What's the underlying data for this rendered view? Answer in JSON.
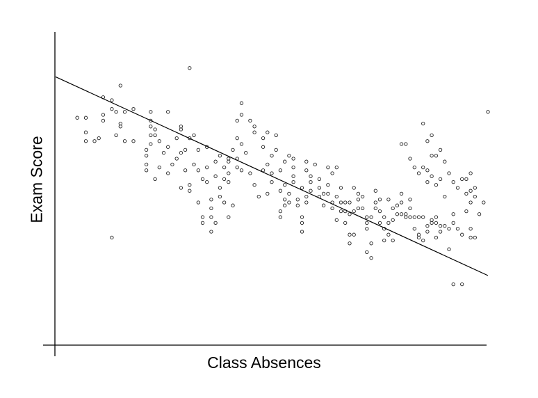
{
  "chart_data": {
    "type": "scatter",
    "title": "",
    "xlabel": "Class Absences",
    "ylabel": "Exam Score",
    "xlim": [
      0,
      100
    ],
    "ylim": [
      0,
      100
    ],
    "grid": false,
    "ticks": false,
    "trendline": {
      "x": [
        0,
        100
      ],
      "y": [
        88,
        20
      ]
    },
    "points": [
      [
        5,
        74
      ],
      [
        7,
        74
      ],
      [
        7,
        69
      ],
      [
        7,
        66
      ],
      [
        9,
        66
      ],
      [
        10,
        67
      ],
      [
        11,
        81
      ],
      [
        11,
        73
      ],
      [
        11,
        75
      ],
      [
        13,
        80
      ],
      [
        13,
        77
      ],
      [
        14,
        76
      ],
      [
        14,
        68
      ],
      [
        15,
        72
      ],
      [
        15,
        71
      ],
      [
        15,
        85
      ],
      [
        16,
        76
      ],
      [
        16,
        66
      ],
      [
        18,
        77
      ],
      [
        18,
        66
      ],
      [
        13,
        33
      ],
      [
        31,
        91
      ],
      [
        21,
        56
      ],
      [
        21,
        63
      ],
      [
        21,
        58
      ],
      [
        21,
        61
      ],
      [
        22,
        65
      ],
      [
        22,
        68
      ],
      [
        22,
        71
      ],
      [
        22,
        73
      ],
      [
        22,
        76
      ],
      [
        23,
        70
      ],
      [
        23,
        68
      ],
      [
        23,
        53
      ],
      [
        24,
        57
      ],
      [
        24,
        66
      ],
      [
        25,
        62
      ],
      [
        26,
        64
      ],
      [
        26,
        55
      ],
      [
        26,
        76
      ],
      [
        27,
        58
      ],
      [
        28,
        60
      ],
      [
        28,
        67
      ],
      [
        29,
        62
      ],
      [
        29,
        50
      ],
      [
        29,
        70
      ],
      [
        29,
        71
      ],
      [
        30,
        63
      ],
      [
        30,
        56
      ],
      [
        31,
        49
      ],
      [
        31,
        51
      ],
      [
        31,
        67
      ],
      [
        32,
        58
      ],
      [
        32,
        68
      ],
      [
        33,
        45
      ],
      [
        33,
        63
      ],
      [
        33,
        56
      ],
      [
        34,
        53
      ],
      [
        34,
        40
      ],
      [
        34,
        38
      ],
      [
        35,
        57
      ],
      [
        35,
        64
      ],
      [
        35,
        52
      ],
      [
        36,
        46
      ],
      [
        36,
        43
      ],
      [
        36,
        40
      ],
      [
        36,
        35
      ],
      [
        37,
        38
      ],
      [
        37,
        59
      ],
      [
        37,
        54
      ],
      [
        38,
        61
      ],
      [
        38,
        50
      ],
      [
        38,
        47
      ],
      [
        39,
        45
      ],
      [
        39,
        53
      ],
      [
        39,
        57
      ],
      [
        40,
        60
      ],
      [
        40,
        52
      ],
      [
        40,
        55
      ],
      [
        40,
        59
      ],
      [
        40,
        40
      ],
      [
        41,
        44
      ],
      [
        41,
        63
      ],
      [
        42,
        73
      ],
      [
        42,
        67
      ],
      [
        42,
        60
      ],
      [
        42,
        57
      ],
      [
        43,
        79
      ],
      [
        43,
        75
      ],
      [
        43,
        65
      ],
      [
        43,
        56
      ],
      [
        44,
        62
      ],
      [
        45,
        55
      ],
      [
        45,
        73
      ],
      [
        46,
        51
      ],
      [
        46,
        71
      ],
      [
        46,
        69
      ],
      [
        47,
        47
      ],
      [
        48,
        67
      ],
      [
        48,
        56
      ],
      [
        48,
        64
      ],
      [
        49,
        69
      ],
      [
        49,
        58
      ],
      [
        49,
        48
      ],
      [
        50,
        61
      ],
      [
        50,
        55
      ],
      [
        50,
        52
      ],
      [
        51,
        63
      ],
      [
        51,
        68
      ],
      [
        52,
        42
      ],
      [
        52,
        40
      ],
      [
        52,
        56
      ],
      [
        52,
        49
      ],
      [
        53,
        44
      ],
      [
        53,
        51
      ],
      [
        53,
        46
      ],
      [
        53,
        59
      ],
      [
        54,
        45
      ],
      [
        54,
        48
      ],
      [
        54,
        61
      ],
      [
        55,
        60
      ],
      [
        55,
        57
      ],
      [
        55,
        54
      ],
      [
        55,
        52
      ],
      [
        56,
        46
      ],
      [
        56,
        44
      ],
      [
        57,
        40
      ],
      [
        57,
        38
      ],
      [
        57,
        35
      ],
      [
        57,
        50
      ],
      [
        58,
        45
      ],
      [
        58,
        47
      ],
      [
        58,
        59
      ],
      [
        58,
        56
      ],
      [
        59,
        49
      ],
      [
        59,
        52
      ],
      [
        59,
        54
      ],
      [
        60,
        58
      ],
      [
        61,
        47
      ],
      [
        61,
        50
      ],
      [
        61,
        53
      ],
      [
        62,
        48
      ],
      [
        62,
        44
      ],
      [
        63,
        48
      ],
      [
        63,
        51
      ],
      [
        63,
        57
      ],
      [
        64,
        45
      ],
      [
        64,
        43
      ],
      [
        64,
        55
      ],
      [
        65,
        47
      ],
      [
        65,
        39
      ],
      [
        65,
        57
      ],
      [
        66,
        42
      ],
      [
        66,
        50
      ],
      [
        66,
        45
      ],
      [
        67,
        45
      ],
      [
        67,
        42
      ],
      [
        67,
        38
      ],
      [
        68,
        45
      ],
      [
        68,
        41
      ],
      [
        68,
        34
      ],
      [
        68,
        31
      ],
      [
        69,
        34
      ],
      [
        69,
        42
      ],
      [
        69,
        50
      ],
      [
        70,
        48
      ],
      [
        70,
        46
      ],
      [
        70,
        43
      ],
      [
        71,
        47
      ],
      [
        71,
        43
      ],
      [
        72,
        36
      ],
      [
        72,
        28
      ],
      [
        72,
        38
      ],
      [
        72,
        40
      ],
      [
        73,
        40
      ],
      [
        73,
        31
      ],
      [
        73,
        26
      ],
      [
        74,
        43
      ],
      [
        74,
        45
      ],
      [
        74,
        49
      ],
      [
        75,
        46
      ],
      [
        75,
        42
      ],
      [
        75,
        38
      ],
      [
        76,
        40
      ],
      [
        76,
        36
      ],
      [
        76,
        32
      ],
      [
        77,
        34
      ],
      [
        77,
        38
      ],
      [
        77,
        46
      ],
      [
        78,
        43
      ],
      [
        78,
        39
      ],
      [
        78,
        32
      ],
      [
        79,
        44
      ],
      [
        79,
        41
      ],
      [
        80,
        41
      ],
      [
        80,
        45
      ],
      [
        80,
        48
      ],
      [
        81,
        40
      ],
      [
        81,
        41
      ],
      [
        82,
        46
      ],
      [
        82,
        43
      ],
      [
        82,
        40
      ],
      [
        83,
        40
      ],
      [
        83,
        36
      ],
      [
        84,
        40
      ],
      [
        84,
        33
      ],
      [
        84,
        34
      ],
      [
        85,
        32
      ],
      [
        85,
        40
      ],
      [
        86,
        37
      ],
      [
        86,
        35
      ],
      [
        87,
        38
      ],
      [
        87,
        39
      ],
      [
        88,
        38
      ],
      [
        88,
        33
      ],
      [
        88,
        40
      ],
      [
        89,
        35
      ],
      [
        89,
        37
      ],
      [
        90,
        37
      ],
      [
        91,
        36
      ],
      [
        91,
        29
      ],
      [
        92,
        38
      ],
      [
        92,
        41
      ],
      [
        93,
        36
      ],
      [
        94,
        34
      ],
      [
        95,
        42
      ],
      [
        96,
        33
      ],
      [
        96,
        36
      ],
      [
        97,
        33
      ],
      [
        97,
        47
      ],
      [
        97,
        50
      ],
      [
        98,
        41
      ],
      [
        99,
        45
      ],
      [
        92,
        17
      ],
      [
        94,
        17
      ],
      [
        95,
        53
      ],
      [
        96,
        49
      ],
      [
        96,
        45
      ],
      [
        85,
        57
      ],
      [
        86,
        52
      ],
      [
        86,
        56
      ],
      [
        87,
        54
      ],
      [
        88,
        51
      ],
      [
        89,
        53
      ],
      [
        90,
        47
      ],
      [
        80,
        65
      ],
      [
        81,
        65
      ],
      [
        82,
        60
      ],
      [
        83,
        57
      ],
      [
        84,
        55
      ],
      [
        85,
        72
      ],
      [
        87,
        68
      ],
      [
        86,
        66
      ],
      [
        87,
        61
      ],
      [
        88,
        61
      ],
      [
        89,
        63
      ],
      [
        90,
        59
      ],
      [
        91,
        55
      ],
      [
        92,
        52
      ],
      [
        93,
        50
      ],
      [
        94,
        53
      ],
      [
        95,
        48
      ],
      [
        96,
        55
      ],
      [
        100,
        76
      ]
    ]
  }
}
